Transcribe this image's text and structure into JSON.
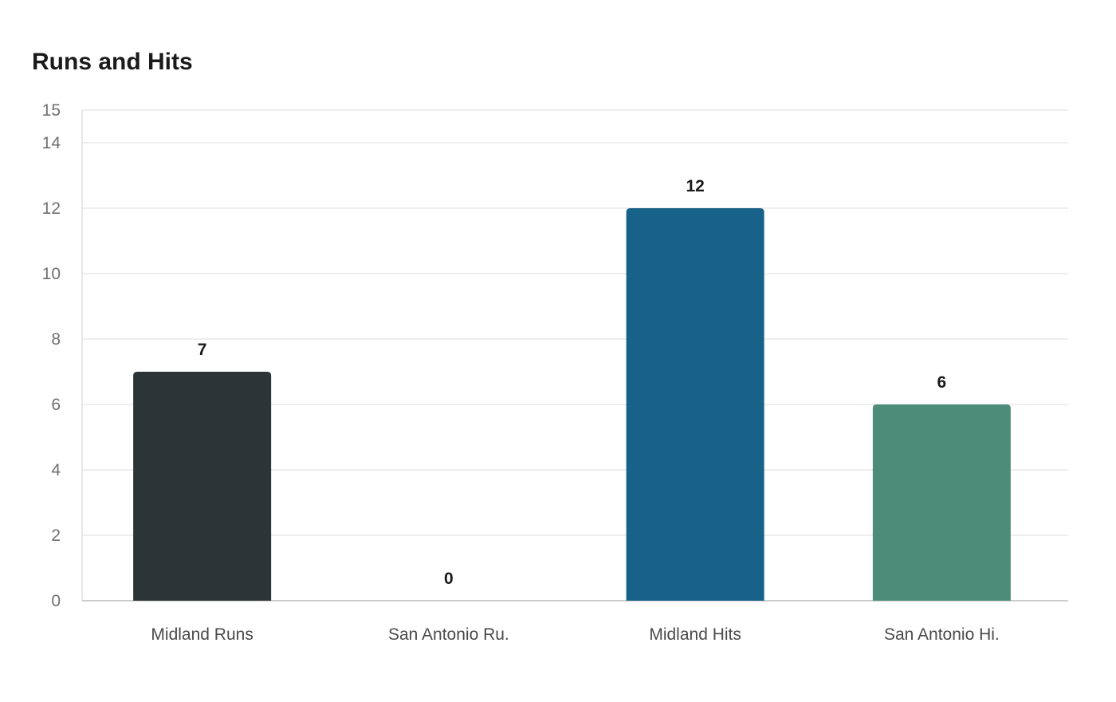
{
  "chart_data": {
    "type": "bar",
    "title": "Runs and Hits",
    "categories": [
      "Midland Runs",
      "San Antonio Ru.",
      "Midland Hits",
      "San Antonio Hi."
    ],
    "values": [
      7,
      0,
      12,
      6
    ],
    "bar_colors": [
      "#2d3436",
      "#2d3436",
      "#186189",
      "#4e8c7a"
    ],
    "yticks": [
      0,
      2,
      4,
      6,
      8,
      10,
      12,
      14,
      15
    ],
    "ylim": [
      0,
      15
    ],
    "xlabel": "",
    "ylabel": "",
    "grid": true,
    "legend": "none",
    "data_labels": true
  }
}
